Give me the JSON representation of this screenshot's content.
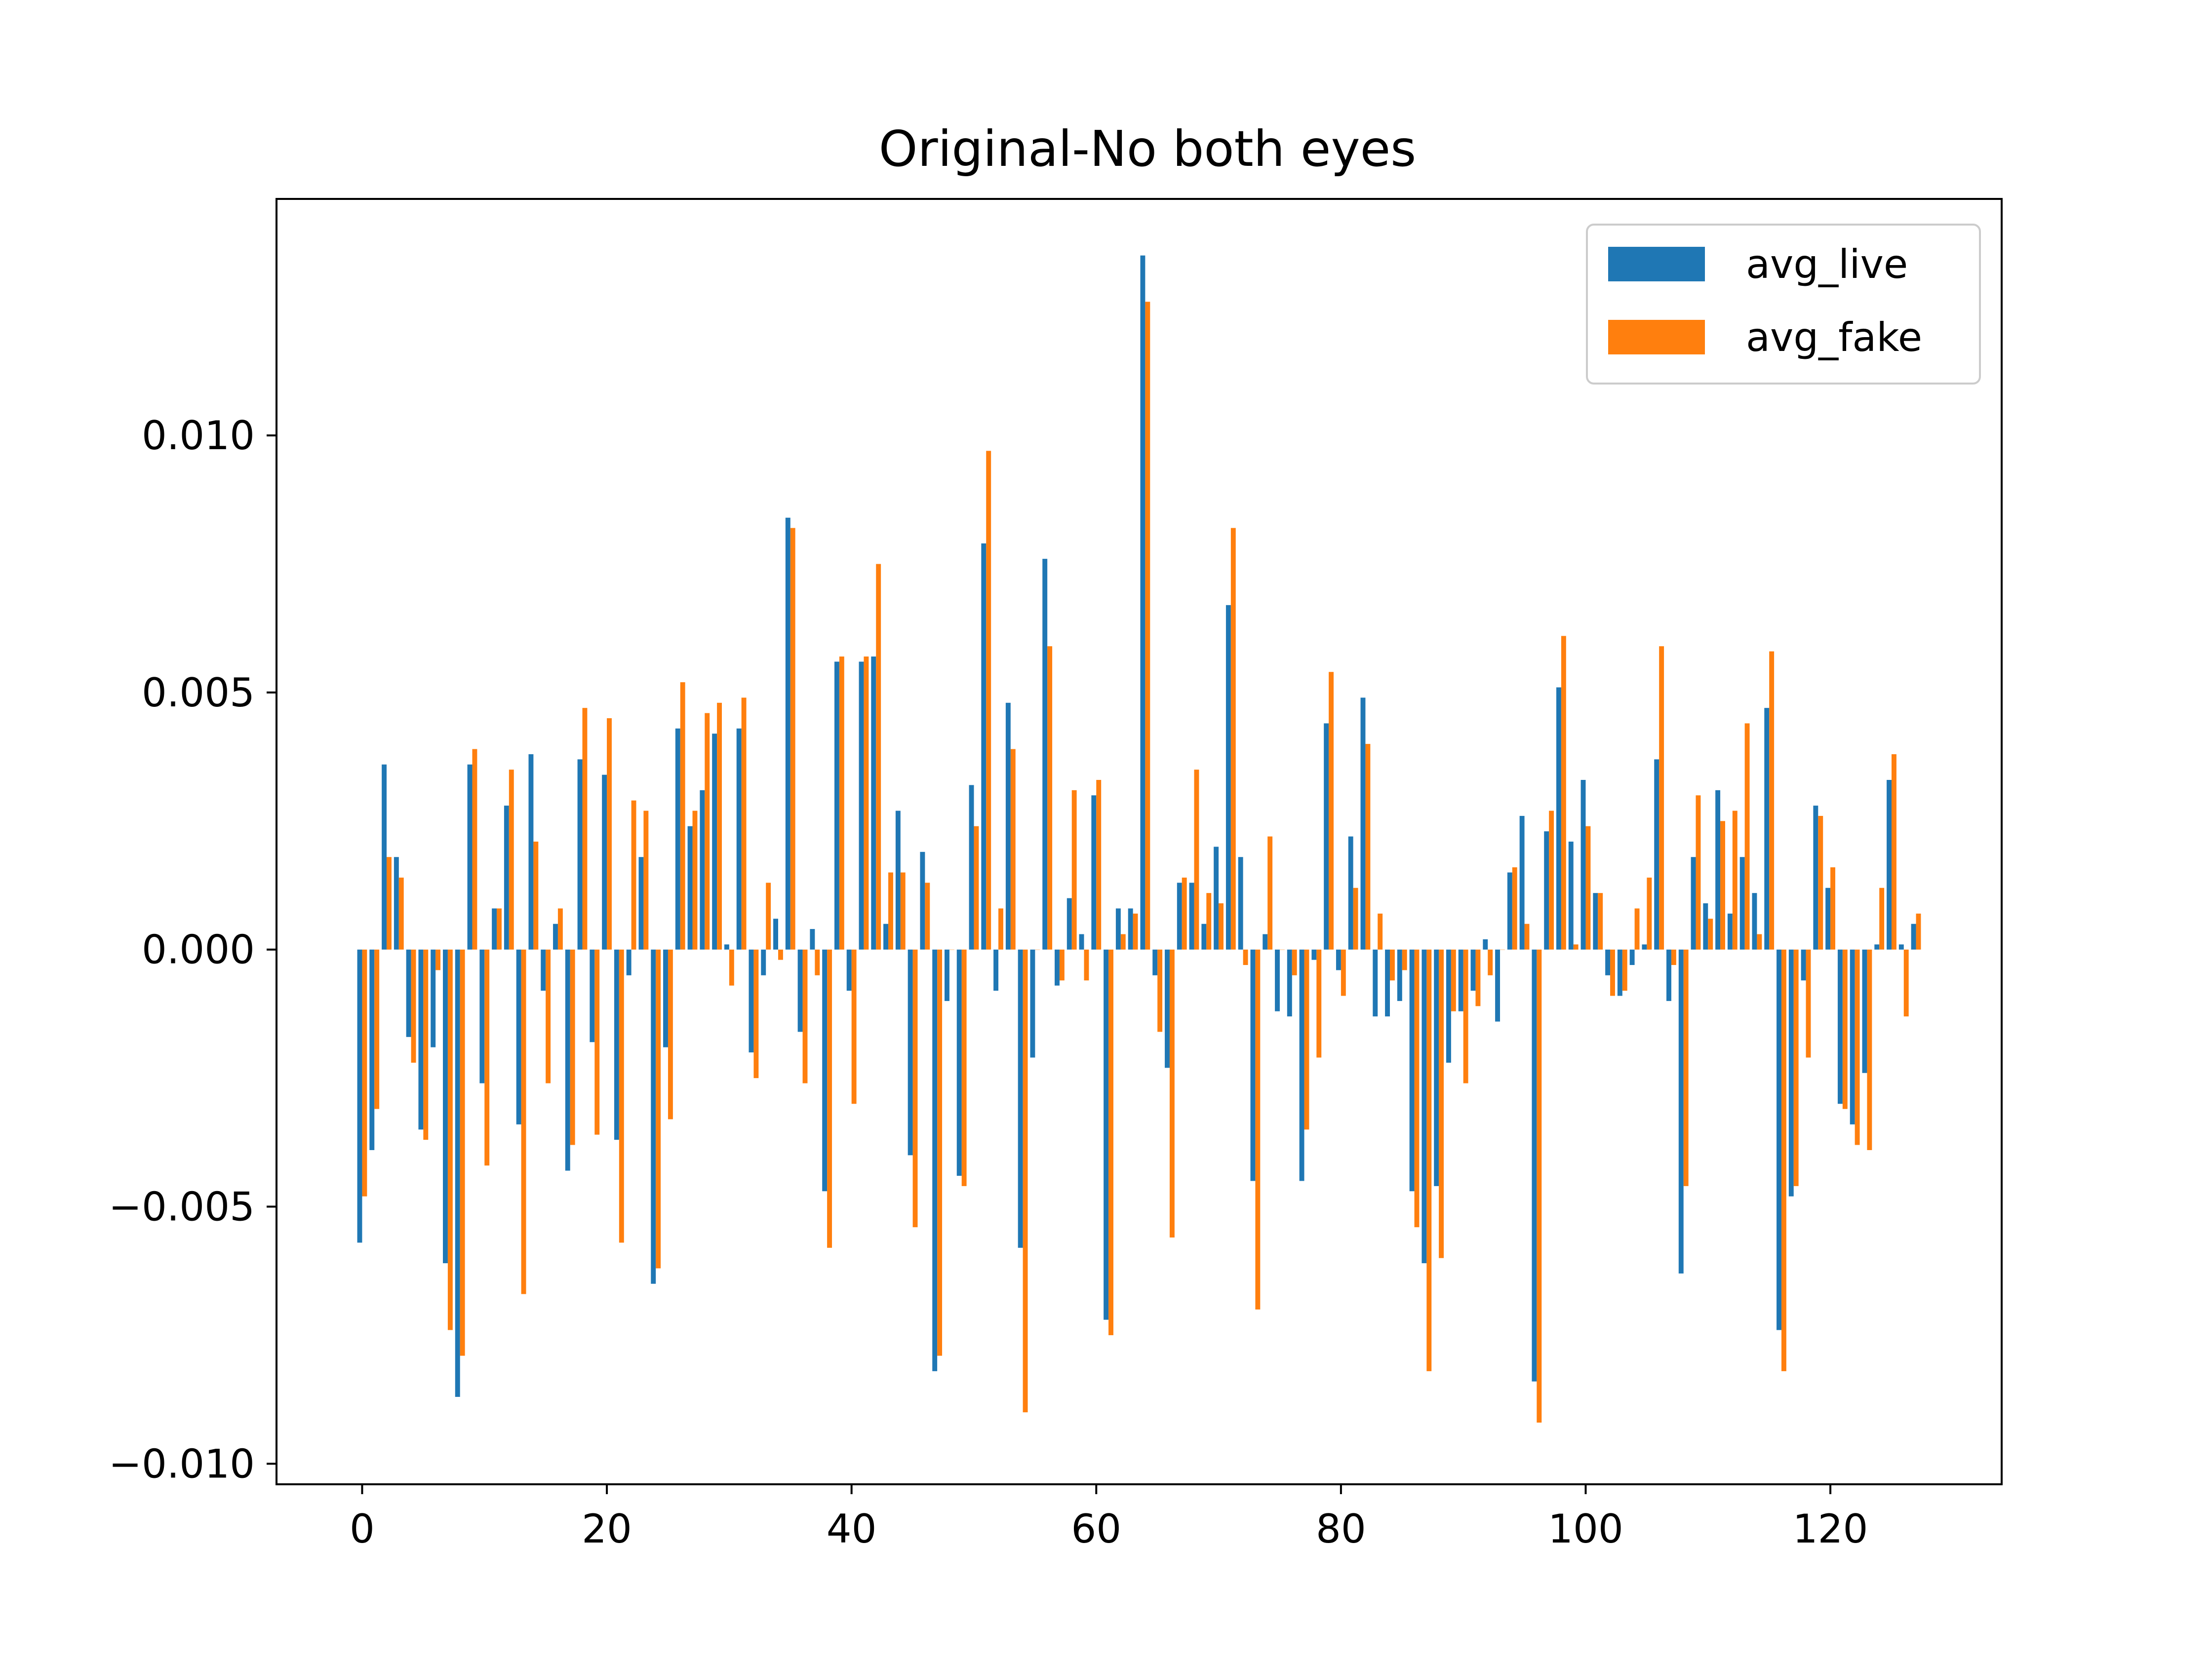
{
  "chart_data": {
    "type": "bar",
    "title": "Original-No both eyes",
    "xlabel": "",
    "ylabel": "",
    "xlim": [
      -7,
      134
    ],
    "ylim": [
      -0.0104,
      0.0146
    ],
    "x_ticks": [
      0,
      20,
      40,
      60,
      80,
      100,
      120
    ],
    "x_tick_labels": [
      "0",
      "20",
      "40",
      "60",
      "80",
      "100",
      "120"
    ],
    "y_ticks": [
      -0.01,
      -0.005,
      0.0,
      0.005,
      0.01
    ],
    "y_tick_labels": [
      "−0.010",
      "−0.005",
      "0.000",
      "0.005",
      "0.010"
    ],
    "grid": false,
    "legend_position": "top-right",
    "series": [
      {
        "name": "avg_live",
        "color": "#1f77b4",
        "values": [
          -0.0057,
          -0.0039,
          0.0036,
          0.0018,
          -0.0017,
          -0.0035,
          -0.0019,
          -0.0061,
          -0.0087,
          0.0036,
          -0.0026,
          0.0008,
          0.0028,
          -0.0034,
          0.0038,
          -0.0008,
          0.0005,
          -0.0043,
          0.0037,
          -0.0018,
          0.0034,
          -0.0037,
          -0.0005,
          0.0018,
          -0.0065,
          -0.0019,
          0.0043,
          0.0024,
          0.0031,
          0.0042,
          0.0001,
          0.0043,
          -0.002,
          -0.0005,
          0.0006,
          0.0084,
          -0.0016,
          0.0004,
          -0.0047,
          0.0056,
          -0.0008,
          0.0056,
          0.0057,
          0.0005,
          0.0027,
          -0.004,
          0.0019,
          -0.0082,
          -0.001,
          -0.0044,
          0.0032,
          0.0079,
          -0.0008,
          0.0048,
          -0.0058,
          -0.0021,
          0.0076,
          -0.0007,
          0.001,
          0.0003,
          0.003,
          -0.0072,
          0.0008,
          0.0008,
          0.0135,
          -0.0005,
          -0.0023,
          0.0013,
          0.0013,
          0.0005,
          0.002,
          0.0067,
          0.0018,
          -0.0045,
          0.0003,
          -0.0012,
          -0.0013,
          -0.0045,
          -0.0002,
          0.0044,
          -0.0004,
          0.0022,
          0.0049,
          -0.0013,
          -0.0013,
          -0.001,
          -0.0047,
          -0.0061,
          -0.0046,
          -0.0022,
          -0.0012,
          -0.0008,
          0.0002,
          -0.0014,
          0.0015,
          0.0026,
          -0.0084,
          0.0023,
          0.0051,
          0.0021,
          0.0033,
          0.0011,
          -0.0005,
          -0.0009,
          -0.0003,
          0.0001,
          0.0037,
          -0.001,
          -0.0063,
          0.0018,
          0.0009,
          0.0031,
          0.0007,
          0.0018,
          0.0011,
          0.0047,
          -0.0074,
          -0.0048,
          -0.0006,
          0.0028,
          0.0012,
          -0.003,
          -0.0034,
          -0.0024,
          0.0001,
          0.0033,
          0.0001,
          0.0005
        ]
      },
      {
        "name": "avg_fake",
        "color": "#ff7f0e",
        "values": [
          -0.0048,
          -0.0031,
          0.0018,
          0.0014,
          -0.0022,
          -0.0037,
          -0.0004,
          -0.0074,
          -0.0079,
          0.0039,
          -0.0042,
          0.0008,
          0.0035,
          -0.0067,
          0.0021,
          -0.0026,
          0.0008,
          -0.0038,
          0.0047,
          -0.0036,
          0.0045,
          -0.0057,
          0.0029,
          0.0027,
          -0.0062,
          -0.0033,
          0.0052,
          0.0027,
          0.0046,
          0.0048,
          -0.0007,
          0.0049,
          -0.0025,
          0.0013,
          -0.0002,
          0.0082,
          -0.0026,
          -0.0005,
          -0.0058,
          0.0057,
          -0.003,
          0.0057,
          0.0075,
          0.0015,
          0.0015,
          -0.0054,
          0.0013,
          -0.0079,
          0.0,
          -0.0046,
          0.0024,
          0.0097,
          0.0008,
          0.0039,
          -0.009,
          0.0,
          0.0059,
          -0.0006,
          0.0031,
          -0.0006,
          0.0033,
          -0.0075,
          0.0003,
          0.0007,
          0.0126,
          -0.0016,
          -0.0056,
          0.0014,
          0.0035,
          0.0011,
          0.0009,
          0.0082,
          -0.0003,
          -0.007,
          0.0022,
          0.0,
          -0.0005,
          -0.0035,
          -0.0021,
          0.0054,
          -0.0009,
          0.0012,
          0.004,
          0.0007,
          -0.0006,
          -0.0004,
          -0.0054,
          -0.0082,
          -0.006,
          -0.0012,
          -0.0026,
          -0.0011,
          -0.0005,
          0.0,
          0.0016,
          0.0005,
          -0.0092,
          0.0027,
          0.0061,
          0.0001,
          0.0024,
          0.0011,
          -0.0009,
          -0.0008,
          0.0008,
          0.0014,
          0.0059,
          -0.0003,
          -0.0046,
          0.003,
          0.0006,
          0.0025,
          0.0027,
          0.0044,
          0.0003,
          0.0058,
          -0.0082,
          -0.0046,
          -0.0021,
          0.0026,
          0.0016,
          -0.0031,
          -0.0038,
          -0.0039,
          0.0012,
          0.0038,
          -0.0013,
          0.0007
        ]
      }
    ]
  }
}
